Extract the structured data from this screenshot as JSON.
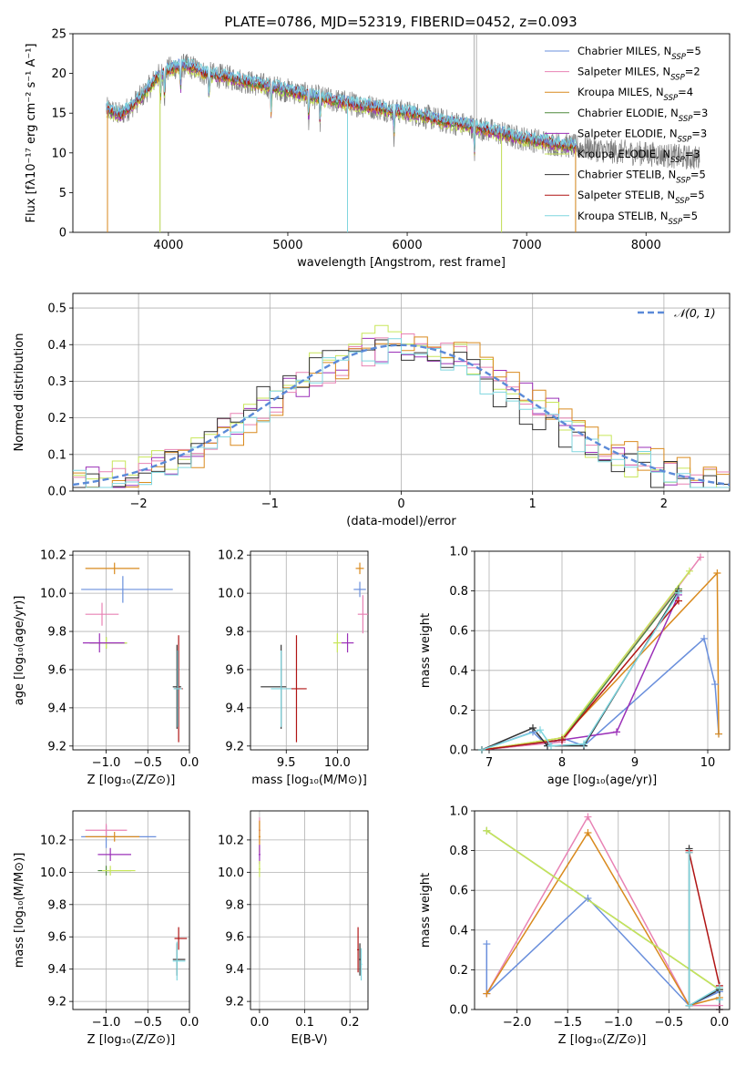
{
  "figure_title": "PLATE=0786, MJD=52319, FIBERID=0452, z=0.093",
  "colors": {
    "Chabrier MILES": "#6a8fdc",
    "Salpeter MILES": "#e882b4",
    "Kroupa MILES": "#d98a1e",
    "Chabrier ELODIE": "#4f8a3c",
    "Salpeter ELODIE": "#9b30b8",
    "Kroupa ELODIE": "#c8e65a",
    "Chabrier STELIB": "#333333",
    "Salpeter STELIB": "#b01414",
    "Kroupa STELIB": "#7fd6df",
    "data": "#808080"
  },
  "chart_data": [
    {
      "id": "spectrum",
      "type": "line",
      "xlabel": "wavelength [Angstrom, rest frame]",
      "ylabel": "Flux [fλ10⁻¹⁷ erg cm⁻² s⁻¹ A⁻¹]",
      "xlim": [
        3200,
        8700
      ],
      "ylim": [
        0,
        25
      ],
      "xticks": [
        4000,
        5000,
        6000,
        7000,
        8000
      ],
      "yticks": [
        0,
        5,
        10,
        15,
        20,
        25
      ],
      "legend_position": "top-right",
      "legend": [
        {
          "label": "Chabrier MILES, N",
          "sub": "SSP",
          "n": "=5",
          "series": "Chabrier MILES"
        },
        {
          "label": "Salpeter MILES, N",
          "sub": "SSP",
          "n": "=2",
          "series": "Salpeter MILES"
        },
        {
          "label": "Kroupa MILES, N",
          "sub": "SSP",
          "n": "=4",
          "series": "Kroupa MILES"
        },
        {
          "label": "Chabrier ELODIE, N",
          "sub": "SSP",
          "n": "=3",
          "series": "Chabrier ELODIE"
        },
        {
          "label": "Salpeter ELODIE, N",
          "sub": "SSP",
          "n": "=3",
          "series": "Salpeter ELODIE"
        },
        {
          "label": "Kroupa ELODIE, N",
          "sub": "SSP",
          "n": "=3",
          "series": "Kroupa ELODIE"
        },
        {
          "label": "Chabrier STELIB, N",
          "sub": "SSP",
          "n": "=5",
          "series": "Chabrier STELIB"
        },
        {
          "label": "Salpeter STELIB, N",
          "sub": "SSP",
          "n": "=5",
          "series": "Salpeter STELIB"
        },
        {
          "label": "Kroupa STELIB, N",
          "sub": "SSP",
          "n": "=5",
          "series": "Kroupa STELIB"
        }
      ],
      "continuum": {
        "x": [
          3480,
          3600,
          3700,
          3800,
          3900,
          4000,
          4100,
          4200,
          4300,
          4500,
          4700,
          4900,
          5100,
          5300,
          5500,
          5700,
          5900,
          6100,
          6300,
          6500,
          6700,
          6900,
          7100,
          7300,
          7500,
          7700,
          7900,
          8100,
          8300,
          8450
        ],
        "y": [
          15.5,
          14.8,
          16.0,
          17.5,
          19.5,
          20.5,
          21.0,
          20.8,
          20.0,
          19.5,
          18.8,
          18.2,
          17.5,
          16.8,
          16.3,
          15.8,
          15.3,
          14.8,
          14.0,
          13.5,
          12.8,
          12.0,
          11.5,
          11.0,
          10.6,
          10.2,
          10.0,
          9.8,
          9.5,
          9.3
        ]
      },
      "model_range": [
        3480,
        7420
      ],
      "data_range": [
        3480,
        8450
      ],
      "data_spikes": [
        {
          "x": 3490,
          "y": 0
        },
        {
          "x": 3930,
          "y": 0
        },
        {
          "x": 5500,
          "y": 0
        },
        {
          "x": 6560,
          "y": 25
        },
        {
          "x": 6580,
          "y": 25
        },
        {
          "x": 6790,
          "y": 0
        },
        {
          "x": 7410,
          "y": 0
        }
      ]
    },
    {
      "id": "residuals",
      "type": "histogram",
      "xlabel": "(data-model)/error",
      "ylabel": "Normed distribution",
      "xlim": [
        -2.5,
        2.5
      ],
      "ylim": [
        0,
        0.54
      ],
      "xticks": [
        -2,
        -1,
        0,
        1,
        2
      ],
      "yticks": [
        0,
        0.1,
        0.2,
        0.3,
        0.4,
        0.5
      ],
      "legend_position": "top-right",
      "legend": [
        {
          "label": "𝒩(0, 1)",
          "style": "dashed"
        }
      ],
      "bin_width": 0.1,
      "bin_start": -2.5,
      "series": [
        {
          "name": "Salpeter ELODIE",
          "offset": 0.05,
          "amp": 0.4
        },
        {
          "name": "Kroupa ELODIE",
          "offset": -0.05,
          "amp": 0.41
        },
        {
          "name": "Salpeter MILES",
          "offset": 0.0,
          "amp": 0.39
        },
        {
          "name": "Kroupa MILES",
          "offset": 0.1,
          "amp": 0.4
        },
        {
          "name": "Chabrier STELIB",
          "offset": -0.1,
          "amp": 0.39
        },
        {
          "name": "Kroupa STELIB",
          "offset": 0.0,
          "amp": 0.38
        }
      ]
    },
    {
      "id": "age-vs-Z",
      "type": "scatter",
      "xlabel": "Z [log₁₀(Z/Z⊙)]",
      "ylabel": "age  [log₁₀(age/yr)]",
      "xlim": [
        -1.4,
        0.0
      ],
      "ylim": [
        9.18,
        10.22
      ],
      "xticks": [
        -1.0,
        -0.5,
        0.0
      ],
      "yticks": [
        9.2,
        9.4,
        9.6,
        9.8,
        10.0,
        10.2
      ],
      "points": [
        {
          "series": "Kroupa MILES",
          "x": -0.9,
          "y": 10.13,
          "xerr": [
            0.35,
            0.3
          ],
          "yerr": 0.03
        },
        {
          "series": "Chabrier MILES",
          "x": -0.8,
          "y": 10.02,
          "xerr": [
            0.5,
            0.6
          ],
          "yerr": 0.07
        },
        {
          "series": "Salpeter MILES",
          "x": -1.05,
          "y": 9.89,
          "xerr": [
            0.2,
            0.2
          ],
          "yerr": 0.06
        },
        {
          "series": "Chabrier ELODIE",
          "x": -1.0,
          "y": 9.74,
          "xerr": [
            0.2,
            0.25
          ],
          "yerr": 0.03
        },
        {
          "series": "Kroupa ELODIE",
          "x": -1.0,
          "y": 9.74,
          "xerr": [
            0.15,
            0.25
          ],
          "yerr": 0.03
        },
        {
          "series": "Salpeter ELODIE",
          "x": -1.08,
          "y": 9.74,
          "xerr": [
            0.2,
            0.3
          ],
          "yerr": 0.05
        },
        {
          "series": "Chabrier STELIB",
          "x": -0.15,
          "y": 9.51,
          "xerr": [
            0.05,
            0.05
          ],
          "yerr": 0.22
        },
        {
          "series": "Salpeter STELIB",
          "x": -0.13,
          "y": 9.5,
          "xerr": [
            0.05,
            0.05
          ],
          "yerr": 0.28
        },
        {
          "series": "Kroupa STELIB",
          "x": -0.14,
          "y": 9.5,
          "xerr": [
            0.05,
            0.05
          ],
          "yerr": 0.2
        }
      ]
    },
    {
      "id": "age-vs-mass",
      "type": "scatter",
      "xlabel": "mass [log₁₀(M/M⊙)]",
      "xlim": [
        9.15,
        10.3
      ],
      "ylim": [
        9.18,
        10.22
      ],
      "xticks": [
        9.5,
        10.0
      ],
      "yticks": [
        9.2,
        9.4,
        9.6,
        9.8,
        10.0,
        10.2
      ],
      "points": [
        {
          "series": "Kroupa MILES",
          "x": 10.22,
          "y": 10.13,
          "xerr": [
            0.04,
            0.04
          ],
          "yerr": 0.03
        },
        {
          "series": "Chabrier MILES",
          "x": 10.22,
          "y": 10.02,
          "xerr": [
            0.06,
            0.06
          ],
          "yerr": 0.04
        },
        {
          "series": "Salpeter MILES",
          "x": 10.25,
          "y": 9.89,
          "xerr": [
            0.05,
            0.05
          ],
          "yerr": 0.1
        },
        {
          "series": "Kroupa ELODIE",
          "x": 10.0,
          "y": 9.74,
          "xerr": [
            0.04,
            0.04
          ],
          "yerr": 0.05
        },
        {
          "series": "Salpeter ELODIE",
          "x": 10.1,
          "y": 9.74,
          "xerr": [
            0.06,
            0.06
          ],
          "yerr": 0.05
        },
        {
          "series": "Chabrier STELIB",
          "x": 9.45,
          "y": 9.51,
          "xerr": [
            0.2,
            0.05
          ],
          "yerr": 0.22
        },
        {
          "series": "Salpeter STELIB",
          "x": 9.6,
          "y": 9.5,
          "xerr": [
            0.1,
            0.1
          ],
          "yerr": 0.28
        },
        {
          "series": "Kroupa STELIB",
          "x": 9.45,
          "y": 9.5,
          "xerr": [
            0.1,
            0.1
          ],
          "yerr": 0.2
        }
      ]
    },
    {
      "id": "mass-weight-vs-age",
      "type": "line",
      "xlabel": "age  [log₁₀(age/yr)]",
      "ylabel": "mass weight",
      "xlim": [
        6.8,
        10.3
      ],
      "ylim": [
        0,
        1.0
      ],
      "xticks": [
        7,
        8,
        9,
        10
      ],
      "yticks": [
        0.0,
        0.2,
        0.4,
        0.6,
        0.8,
        1.0
      ],
      "series": [
        {
          "name": "Chabrier MILES",
          "x": [
            6.9,
            7.6,
            7.8,
            8.0,
            8.3,
            9.95,
            10.1,
            10.15
          ],
          "y": [
            0.0,
            0.09,
            0.02,
            0.06,
            0.02,
            0.56,
            0.33,
            0.08
          ]
        },
        {
          "name": "Salpeter MILES",
          "x": [
            6.9,
            8.0,
            9.9
          ],
          "y": [
            0.0,
            0.04,
            0.97
          ]
        },
        {
          "name": "Kroupa MILES",
          "x": [
            6.9,
            8.0,
            10.13,
            10.15
          ],
          "y": [
            0.0,
            0.06,
            0.89,
            0.08
          ]
        },
        {
          "name": "Chabrier ELODIE",
          "x": [
            6.9,
            8.0,
            9.6
          ],
          "y": [
            0.0,
            0.05,
            0.81
          ]
        },
        {
          "name": "Salpeter ELODIE",
          "x": [
            6.9,
            8.0,
            8.75,
            9.6
          ],
          "y": [
            0.0,
            0.05,
            0.09,
            0.78
          ]
        },
        {
          "name": "Kroupa ELODIE",
          "x": [
            6.9,
            8.0,
            9.75
          ],
          "y": [
            0.0,
            0.06,
            0.9
          ]
        },
        {
          "name": "Chabrier STELIB",
          "x": [
            6.9,
            7.6,
            7.8,
            8.3,
            9.6
          ],
          "y": [
            0.0,
            0.11,
            0.02,
            0.02,
            0.8
          ]
        },
        {
          "name": "Salpeter STELIB",
          "x": [
            6.9,
            8.0,
            9.6
          ],
          "y": [
            0.0,
            0.05,
            0.75
          ]
        },
        {
          "name": "Kroupa STELIB",
          "x": [
            6.9,
            7.7,
            7.85,
            8.3,
            9.6
          ],
          "y": [
            0.0,
            0.1,
            0.02,
            0.03,
            0.79
          ]
        }
      ]
    },
    {
      "id": "mass-vs-Z",
      "type": "scatter",
      "xlabel": "Z [log₁₀(Z/Z⊙)]",
      "ylabel": "mass [log₁₀(M/M⊙)]",
      "xlim": [
        -1.4,
        0.0
      ],
      "ylim": [
        9.15,
        10.38
      ],
      "xticks": [
        -1.0,
        -0.5,
        0.0
      ],
      "yticks": [
        9.2,
        9.4,
        9.6,
        9.8,
        10.0,
        10.2
      ],
      "points": [
        {
          "series": "Chabrier MILES",
          "x": -1.0,
          "y": 10.22,
          "xerr": [
            0.3,
            0.6
          ],
          "yerr": 0.07
        },
        {
          "series": "Salpeter MILES",
          "x": -1.0,
          "y": 10.26,
          "xerr": [
            0.25,
            0.25
          ],
          "yerr": 0.04
        },
        {
          "series": "Kroupa MILES",
          "x": -0.9,
          "y": 10.22,
          "xerr": [
            0.35,
            0.3
          ],
          "yerr": 0.03
        },
        {
          "series": "Salpeter ELODIE",
          "x": -0.95,
          "y": 10.11,
          "xerr": [
            0.15,
            0.25
          ],
          "yerr": 0.04
        },
        {
          "series": "Chabrier ELODIE",
          "x": -1.0,
          "y": 10.01,
          "xerr": [
            0.1,
            0.3
          ],
          "yerr": 0.03
        },
        {
          "series": "Kroupa ELODIE",
          "x": -0.95,
          "y": 10.01,
          "xerr": [
            0.1,
            0.3
          ],
          "yerr": 0.03
        },
        {
          "series": "Salpeter STELIB",
          "x": -0.13,
          "y": 9.59,
          "xerr": [
            0.05,
            0.1
          ],
          "yerr": 0.07
        },
        {
          "series": "Chabrier STELIB",
          "x": -0.15,
          "y": 9.46,
          "xerr": [
            0.05,
            0.1
          ],
          "yerr": 0.1
        },
        {
          "series": "Kroupa STELIB",
          "x": -0.15,
          "y": 9.45,
          "xerr": [
            0.05,
            0.1
          ],
          "yerr": 0.12
        }
      ]
    },
    {
      "id": "mass-vs-ebv",
      "type": "scatter",
      "xlabel": "E(B-V)",
      "xlim": [
        -0.02,
        0.24
      ],
      "ylim": [
        9.15,
        10.38
      ],
      "xticks": [
        0.0,
        0.1,
        0.2
      ],
      "yticks": [
        9.2,
        9.4,
        9.6,
        9.8,
        10.0,
        10.2
      ],
      "points": [
        {
          "series": "Salpeter MILES",
          "x": 0.0,
          "y": 10.26,
          "xerr": [
            0.002,
            0.002
          ],
          "yerr": 0.08
        },
        {
          "series": "Kroupa MILES",
          "x": 0.0,
          "y": 10.22,
          "xerr": [
            0.002,
            0.002
          ],
          "yerr": 0.1
        },
        {
          "series": "Salpeter ELODIE",
          "x": 0.0,
          "y": 10.11,
          "xerr": [
            0.002,
            0.002
          ],
          "yerr": 0.06
        },
        {
          "series": "Kroupa ELODIE",
          "x": 0.0,
          "y": 10.02,
          "xerr": [
            0.002,
            0.002
          ],
          "yerr": 0.05
        },
        {
          "series": "Salpeter STELIB",
          "x": 0.218,
          "y": 9.52,
          "xerr": [
            0.002,
            0.002
          ],
          "yerr": 0.14
        },
        {
          "series": "Chabrier STELIB",
          "x": 0.222,
          "y": 9.46,
          "xerr": [
            0.002,
            0.002
          ],
          "yerr": 0.1
        },
        {
          "series": "Kroupa STELIB",
          "x": 0.225,
          "y": 9.43,
          "xerr": [
            0.002,
            0.002
          ],
          "yerr": 0.1
        }
      ]
    },
    {
      "id": "mass-weight-vs-Z",
      "type": "line",
      "xlabel": "Z [log₁₀(Z/Z⊙)]",
      "ylabel": "mass weight",
      "xlim": [
        -2.42,
        0.1
      ],
      "ylim": [
        0,
        1.0
      ],
      "xticks": [
        -2.0,
        -1.5,
        -1.0,
        -0.5,
        0.0
      ],
      "yticks": [
        0.0,
        0.2,
        0.4,
        0.6,
        0.8,
        1.0
      ],
      "series": [
        {
          "name": "Chabrier MILES",
          "x": [
            -2.3,
            -2.3,
            -1.3,
            -0.3,
            0.0,
            0.0
          ],
          "y": [
            0.33,
            0.08,
            0.56,
            0.02,
            0.09,
            0.0
          ]
        },
        {
          "name": "Salpeter MILES",
          "x": [
            -2.3,
            -1.3,
            -0.3,
            0.0
          ],
          "y": [
            0.08,
            0.97,
            0.02,
            0.02
          ]
        },
        {
          "name": "Kroupa MILES",
          "x": [
            -2.3,
            -1.3,
            -0.3,
            0.0
          ],
          "y": [
            0.08,
            0.89,
            0.02,
            0.06
          ]
        },
        {
          "name": "Chabrier ELODIE",
          "x": [
            -2.3,
            0.0
          ],
          "y": [
            0.9,
            0.1
          ]
        },
        {
          "name": "Kroupa ELODIE",
          "x": [
            -2.3,
            0.0
          ],
          "y": [
            0.9,
            0.1
          ]
        },
        {
          "name": "Salpeter STELIB",
          "x": [
            -0.3,
            -0.3,
            0.0,
            0.0
          ],
          "y": [
            0.8,
            0.79,
            0.12,
            0.0
          ]
        },
        {
          "name": "Chabrier STELIB",
          "x": [
            -0.3,
            -0.3,
            0.0,
            0.0
          ],
          "y": [
            0.81,
            0.02,
            0.1,
            0.0
          ]
        },
        {
          "name": "Kroupa STELIB",
          "x": [
            -0.3,
            -0.3,
            0.0,
            0.0
          ],
          "y": [
            0.79,
            0.02,
            0.11,
            0.05
          ]
        }
      ]
    }
  ]
}
